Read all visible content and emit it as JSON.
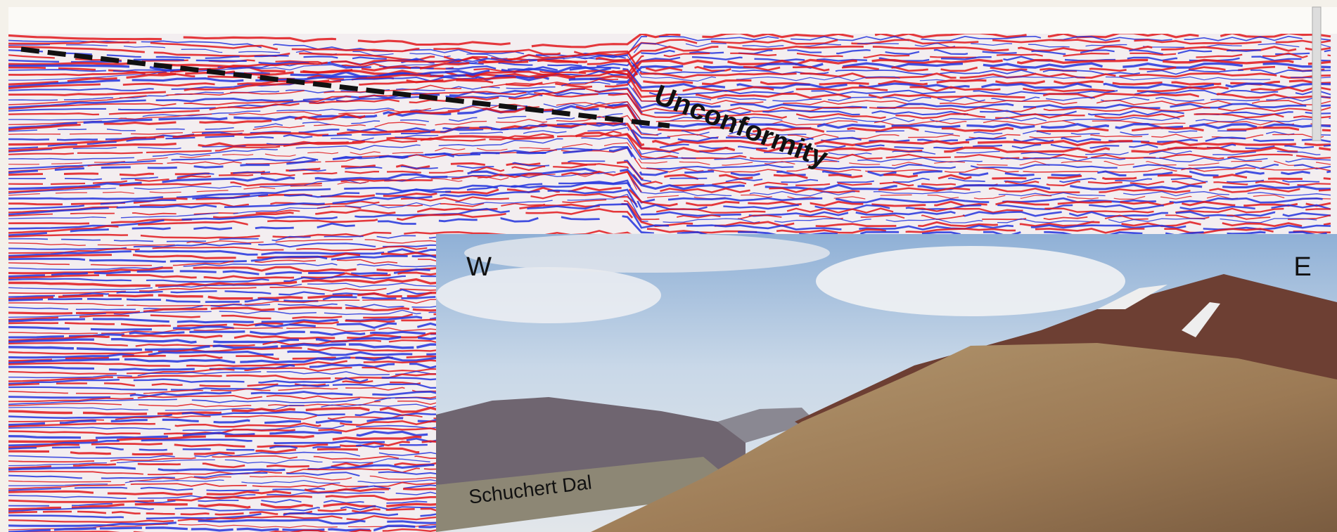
{
  "labels": {
    "unconformity": "Unconformity",
    "west": "W",
    "east": "E",
    "place": "Schuchert Dal"
  }
}
